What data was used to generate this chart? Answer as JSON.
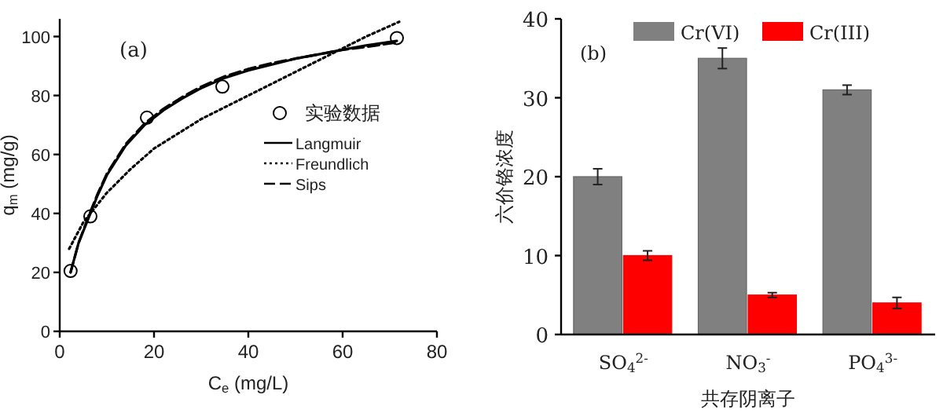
{
  "chart_data": [
    {
      "type": "line",
      "xlabel": "C$_{e}$ (mg/L)",
      "ylabel": "q$_{m}$ (mg/g)",
      "xlim": [
        0,
        80
      ],
      "ylim": [
        0,
        106
      ],
      "xticks": [
        0,
        20,
        40,
        60,
        80
      ],
      "yticks": [
        0,
        20,
        40,
        60,
        80,
        100
      ],
      "legend": "right",
      "annotations": [
        "(a)"
      ],
      "series": [
        {
          "name": "实验数据",
          "type": "scatter",
          "marker": "circle",
          "color": "#000000",
          "x": [
            2.3,
            6.5,
            18.5,
            34.5,
            71.5
          ],
          "values": [
            20.5,
            39,
            72.5,
            83,
            99.5
          ]
        },
        {
          "name": "Langmuir",
          "type": "line",
          "line_style": "solid",
          "color": "#000000",
          "x": [
            2.3,
            4,
            6,
            8,
            10,
            14,
            18,
            22,
            26,
            30,
            35,
            40,
            45,
            50,
            55,
            60,
            65,
            71.5
          ],
          "values": [
            20,
            30,
            38,
            46,
            53,
            63,
            70,
            75,
            79,
            82.5,
            86,
            88.5,
            90.5,
            92.5,
            94,
            95.5,
            97,
            98.5
          ]
        },
        {
          "name": "Freundlich",
          "type": "line",
          "line_style": "dotted",
          "color": "#000000",
          "x": [
            2,
            5,
            10,
            15,
            20,
            25,
            30,
            35,
            40,
            45,
            50,
            55,
            60,
            65,
            72
          ],
          "values": [
            28,
            37,
            47,
            55,
            62,
            67,
            72,
            76,
            80,
            84,
            88,
            92,
            96,
            100,
            105
          ]
        },
        {
          "name": "Sips",
          "type": "line",
          "line_style": "dashed",
          "color": "#000000",
          "x": [
            2.3,
            4,
            6,
            8,
            10,
            14,
            18,
            22,
            26,
            30,
            35,
            40,
            45,
            50,
            55,
            60,
            65,
            71.5
          ],
          "values": [
            20,
            30,
            38.5,
            46.5,
            53.5,
            63.5,
            70.5,
            75.5,
            79.5,
            83,
            86.5,
            89,
            91,
            92.5,
            94,
            95.5,
            96.5,
            98
          ]
        }
      ]
    },
    {
      "type": "bar",
      "xlabel": "共存阴离子",
      "ylabel": "六价铬浓度",
      "categories": [
        "SO$_{4}$$^{2-}$",
        "NO$_{3}$$^{-}$",
        "PO$_{4}$$^{3-}$"
      ],
      "ylim": [
        0,
        40
      ],
      "yticks": [
        0,
        10,
        20,
        30,
        40
      ],
      "legend": "top",
      "annotations": [
        "(b)"
      ],
      "series": [
        {
          "name": "Cr(VI)",
          "color": "#808080",
          "values": [
            20,
            35,
            31
          ],
          "errors": [
            1,
            1.3,
            0.6
          ]
        },
        {
          "name": "Cr(III)",
          "color": "#ff0000",
          "values": [
            10,
            5,
            4
          ],
          "errors": [
            0.6,
            0.3,
            0.7
          ]
        }
      ]
    }
  ]
}
